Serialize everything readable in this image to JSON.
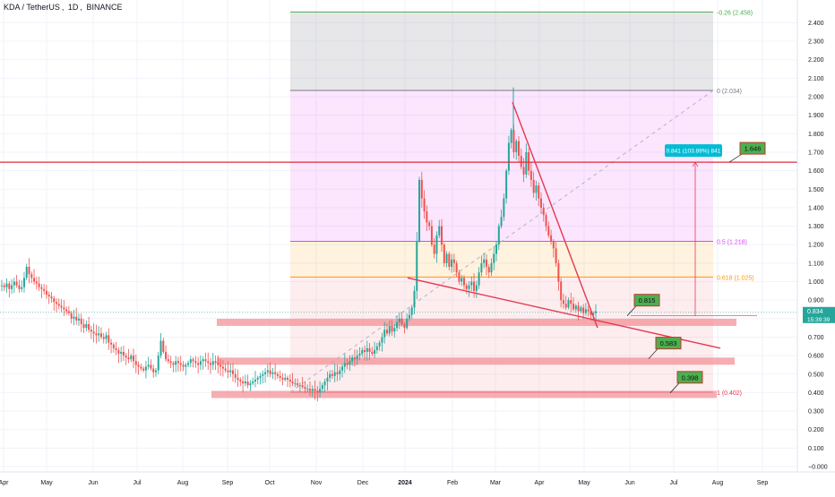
{
  "header": {
    "symbol": "KDA / TetherUS",
    "interval": "1D",
    "exchange": "BINANCE"
  },
  "colors": {
    "background": "#ffffff",
    "grid": "#f0f3fa",
    "bull_candle": "#26a69a",
    "bear_candle": "#ef5350",
    "trendline": "#e53950",
    "resistance_line": "#e0283c",
    "fib_0": "#787b86",
    "fib_neg026": "#4caf50",
    "fib_05": "#e040fb",
    "fib_0618": "#ff9800",
    "fib_1": "#e53950",
    "zone": "#f28b92",
    "label_green": "#4caf50",
    "measure_blue": "#00bcd4",
    "current_price": "#26a69a"
  },
  "chart_data": {
    "type": "candlestick",
    "symbol": "KDA / TetherUS",
    "timeframe": "1D",
    "exchange": "BINANCE",
    "y_axis": {
      "range": [
        -0.05,
        2.5
      ],
      "ticks": [
        "2.400",
        "2.300",
        "2.200",
        "2.100",
        "2.000",
        "1.900",
        "1.800",
        "1.700",
        "1.600",
        "1.500",
        "1.400",
        "1.300",
        "1.200",
        "1.100",
        "1.000",
        "0.900",
        "0.800",
        "0.700",
        "0.600",
        "0.500",
        "0.400",
        "0.300",
        "0.200",
        "0.100",
        "−0.000"
      ]
    },
    "x_axis": {
      "ticks": [
        "Apr",
        "May",
        "Jun",
        "Jul",
        "Aug",
        "Sep",
        "Oct",
        "Nov",
        "Dec",
        "2024",
        "Feb",
        "Mar",
        "Apr",
        "May",
        "Jun",
        "Jul",
        "Aug",
        "Sep"
      ]
    },
    "current_price": {
      "value": "0.834",
      "countdown": "15:39:39"
    },
    "fib_retracement": [
      {
        "level": "-0.26",
        "price": 2.458,
        "label": "-0.26 (2.458)"
      },
      {
        "level": "0",
        "price": 2.034,
        "label": "0 (2.034)"
      },
      {
        "level": "0.5",
        "price": 1.218,
        "label": "0.5 (1.218)"
      },
      {
        "level": "0.618",
        "price": 1.025,
        "label": "0.618 (1.025)"
      },
      {
        "level": "1",
        "price": 0.402,
        "label": "1 (0.402)"
      }
    ],
    "horizontal_lines": [
      {
        "price": 1.646
      }
    ],
    "support_zones": [
      {
        "price": 0.78
      },
      {
        "price": 0.57
      },
      {
        "price": 0.39
      }
    ],
    "price_labels": [
      {
        "text": "1.646",
        "price": 1.646
      },
      {
        "text": "0.815",
        "price": 0.815
      },
      {
        "text": "0.583",
        "price": 0.583
      },
      {
        "text": "0.398",
        "price": 0.398
      }
    ],
    "measure": {
      "label": "0.841 (103.89%) 841",
      "from": 0.815,
      "to": 1.646
    },
    "trendlines": [
      {
        "name": "upper",
        "from_price": 1.97,
        "to_price": 0.75
      },
      {
        "name": "lower",
        "from_price": 1.02,
        "to_price": 0.64
      }
    ],
    "candles": [
      0.98,
      0.97,
      0.99,
      0.96,
      0.98,
      1.0,
      0.98,
      0.96,
      0.97,
      1.02,
      1.08,
      1.04,
      1.02,
      1.0,
      0.99,
      0.97,
      0.96,
      0.95,
      0.93,
      0.92,
      0.91,
      0.89,
      0.88,
      0.87,
      0.86,
      0.85,
      0.84,
      0.83,
      0.8,
      0.81,
      0.79,
      0.8,
      0.77,
      0.75,
      0.77,
      0.74,
      0.73,
      0.72,
      0.71,
      0.72,
      0.7,
      0.69,
      0.71,
      0.67,
      0.66,
      0.64,
      0.63,
      0.61,
      0.62,
      0.6,
      0.59,
      0.58,
      0.6,
      0.57,
      0.55,
      0.54,
      0.53,
      0.52,
      0.54,
      0.55,
      0.53,
      0.51,
      0.52,
      0.6,
      0.68,
      0.62,
      0.58,
      0.57,
      0.56,
      0.55,
      0.57,
      0.56,
      0.55,
      0.54,
      0.55,
      0.56,
      0.58,
      0.57,
      0.56,
      0.55,
      0.57,
      0.58,
      0.57,
      0.56,
      0.55,
      0.57,
      0.56,
      0.55,
      0.54,
      0.53,
      0.52,
      0.51,
      0.52,
      0.5,
      0.48,
      0.47,
      0.46,
      0.45,
      0.46,
      0.44,
      0.45,
      0.46,
      0.47,
      0.48,
      0.49,
      0.5,
      0.51,
      0.52,
      0.5,
      0.51,
      0.5,
      0.49,
      0.48,
      0.47,
      0.48,
      0.47,
      0.46,
      0.45,
      0.45,
      0.44,
      0.44,
      0.43,
      0.42,
      0.42,
      0.41,
      0.42,
      0.41,
      0.4,
      0.42,
      0.44,
      0.46,
      0.48,
      0.5,
      0.49,
      0.51,
      0.5,
      0.52,
      0.54,
      0.56,
      0.55,
      0.57,
      0.59,
      0.58,
      0.6,
      0.61,
      0.63,
      0.62,
      0.64,
      0.62,
      0.61,
      0.63,
      0.65,
      0.67,
      0.7,
      0.74,
      0.72,
      0.76,
      0.73,
      0.75,
      0.78,
      0.8,
      0.77,
      0.75,
      0.8,
      0.82,
      0.86,
      0.95,
      1.22,
      1.55,
      1.45,
      1.38,
      1.32,
      1.3,
      1.2,
      1.15,
      1.25,
      1.3,
      1.2,
      1.1,
      1.15,
      1.08,
      1.12,
      1.1,
      1.05,
      1.0,
      1.02,
      0.98,
      0.96,
      0.98,
      1.0,
      0.95,
      0.98,
      1.05,
      1.1,
      1.12,
      1.08,
      1.05,
      1.1,
      1.15,
      1.2,
      1.3,
      1.35,
      1.45,
      1.6,
      1.75,
      1.82,
      1.7,
      1.76,
      1.68,
      1.62,
      1.58,
      1.7,
      1.6,
      1.55,
      1.48,
      1.52,
      1.45,
      1.4,
      1.36,
      1.3,
      1.25,
      1.22,
      1.18,
      1.1,
      1.0,
      0.9,
      0.88,
      0.86,
      0.9,
      0.88,
      0.85,
      0.87,
      0.84,
      0.86,
      0.83,
      0.85,
      0.84,
      0.82,
      0.83,
      0.84
    ]
  },
  "icons": {
    "header_dot": "status-dot"
  }
}
